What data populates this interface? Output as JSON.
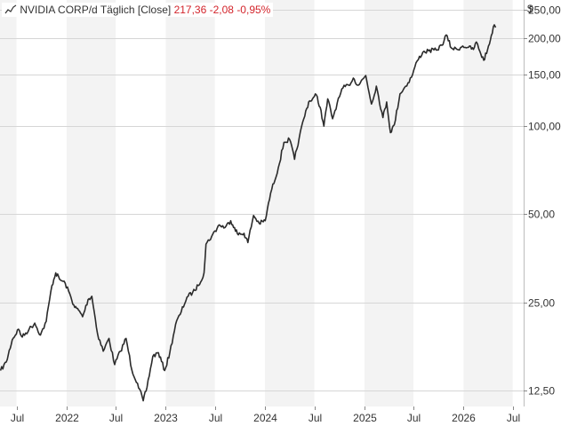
{
  "legend": {
    "instrument": "NVIDIA CORP/d",
    "interval": "Täglich",
    "mode": "[Close]",
    "last": "217,36",
    "change": "-2,08",
    "change_pct": "-0,95%"
  },
  "colors": {
    "line": "#2b2b2b",
    "change_negative": "#d3242b",
    "band_light": "#f3f3f3",
    "band_white": "#ffffff",
    "grid": "#d6d6d6",
    "axis_panel": "#ffffff"
  },
  "chart_data": {
    "type": "line",
    "title": "",
    "xlabel": "",
    "ylabel": "",
    "y_scale": "log",
    "y_unit": "$",
    "ylim": [
      11,
      270
    ],
    "xlim": [
      "2021-05-01",
      "2026-08-10"
    ],
    "x_ticks": [
      {
        "date": "2021-07-01",
        "label": "Jul"
      },
      {
        "date": "2022-01-01",
        "label": "2022"
      },
      {
        "date": "2022-07-01",
        "label": "Jul"
      },
      {
        "date": "2023-01-01",
        "label": "2023"
      },
      {
        "date": "2023-07-01",
        "label": "Jul"
      },
      {
        "date": "2024-01-01",
        "label": "2024"
      },
      {
        "date": "2024-07-01",
        "label": "Jul"
      },
      {
        "date": "2025-01-01",
        "label": "2025"
      },
      {
        "date": "2025-07-01",
        "label": "Jul"
      },
      {
        "date": "2026-01-01",
        "label": "2026"
      },
      {
        "date": "2026-07-01",
        "label": "Jul"
      }
    ],
    "y_ticks": [
      {
        "value": 12.5,
        "label": "12,50"
      },
      {
        "value": 25,
        "label": "25,00"
      },
      {
        "value": 50,
        "label": "50,00"
      },
      {
        "value": 100,
        "label": "100,00"
      },
      {
        "value": 150,
        "label": "150,00"
      },
      {
        "value": 200,
        "label": "200,00"
      },
      {
        "value": 250,
        "label": "250,00"
      }
    ],
    "grid": true,
    "series": [
      {
        "name": "NVIDIA CORP/d",
        "points": [
          [
            "2021-05-03",
            14.6
          ],
          [
            "2021-05-24",
            15.6
          ],
          [
            "2021-06-15",
            18.6
          ],
          [
            "2021-07-08",
            20.2
          ],
          [
            "2021-07-22",
            19.0
          ],
          [
            "2021-08-16",
            20.2
          ],
          [
            "2021-09-06",
            21.2
          ],
          [
            "2021-09-27",
            19.3
          ],
          [
            "2021-10-18",
            21.5
          ],
          [
            "2021-11-08",
            28.5
          ],
          [
            "2021-11-22",
            31.5
          ],
          [
            "2021-12-06",
            30.0
          ],
          [
            "2021-12-27",
            29.0
          ],
          [
            "2022-01-17",
            26.0
          ],
          [
            "2022-01-31",
            24.0
          ],
          [
            "2022-02-14",
            23.5
          ],
          [
            "2022-03-01",
            22.3
          ],
          [
            "2022-03-21",
            25.5
          ],
          [
            "2022-04-04",
            26.2
          ],
          [
            "2022-04-25",
            19.5
          ],
          [
            "2022-05-16",
            17.0
          ],
          [
            "2022-06-06",
            18.8
          ],
          [
            "2022-06-27",
            15.3
          ],
          [
            "2022-07-18",
            17.0
          ],
          [
            "2022-08-08",
            18.8
          ],
          [
            "2022-08-29",
            14.7
          ],
          [
            "2022-09-19",
            13.2
          ],
          [
            "2022-10-10",
            11.5
          ],
          [
            "2022-10-24",
            12.8
          ],
          [
            "2022-11-14",
            16.3
          ],
          [
            "2022-12-05",
            16.8
          ],
          [
            "2022-12-28",
            14.6
          ],
          [
            "2023-01-16",
            16.8
          ],
          [
            "2023-02-06",
            21.0
          ],
          [
            "2023-02-27",
            23.2
          ],
          [
            "2023-03-20",
            26.0
          ],
          [
            "2023-04-10",
            27.0
          ],
          [
            "2023-05-01",
            28.5
          ],
          [
            "2023-05-22",
            31.5
          ],
          [
            "2023-05-29",
            39.5
          ],
          [
            "2023-06-19",
            42.0
          ],
          [
            "2023-07-17",
            46.0
          ],
          [
            "2023-08-07",
            45.0
          ],
          [
            "2023-08-28",
            47.5
          ],
          [
            "2023-09-11",
            45.0
          ],
          [
            "2023-09-25",
            42.5
          ],
          [
            "2023-10-16",
            43.0
          ],
          [
            "2023-10-30",
            40.0
          ],
          [
            "2023-11-20",
            49.5
          ],
          [
            "2023-12-11",
            46.5
          ],
          [
            "2024-01-02",
            47.5
          ],
          [
            "2024-01-22",
            59.0
          ],
          [
            "2024-02-19",
            72.0
          ],
          [
            "2024-03-11",
            88.0
          ],
          [
            "2024-04-01",
            90.0
          ],
          [
            "2024-04-19",
            77.0
          ],
          [
            "2024-05-06",
            91.0
          ],
          [
            "2024-05-23",
            106.0
          ],
          [
            "2024-06-10",
            121.0
          ],
          [
            "2024-06-24",
            124.0
          ],
          [
            "2024-07-08",
            128.0
          ],
          [
            "2024-07-22",
            116.0
          ],
          [
            "2024-08-05",
            100.0
          ],
          [
            "2024-08-19",
            124.0
          ],
          [
            "2024-09-06",
            106.0
          ],
          [
            "2024-09-23",
            120.0
          ],
          [
            "2024-10-14",
            135.0
          ],
          [
            "2024-11-04",
            138.0
          ],
          [
            "2024-11-21",
            146.0
          ],
          [
            "2024-12-09",
            138.0
          ],
          [
            "2025-01-06",
            149.0
          ],
          [
            "2025-01-27",
            119.0
          ],
          [
            "2025-02-14",
            137.0
          ],
          [
            "2025-03-10",
            107.0
          ],
          [
            "2025-03-24",
            121.0
          ],
          [
            "2025-04-07",
            95.0
          ],
          [
            "2025-04-21",
            101.0
          ],
          [
            "2025-05-12",
            129.0
          ],
          [
            "2025-06-02",
            137.0
          ],
          [
            "2025-06-23",
            147.0
          ],
          [
            "2025-07-14",
            167.0
          ],
          [
            "2025-08-04",
            179.0
          ],
          [
            "2025-08-25",
            181.0
          ],
          [
            "2025-09-22",
            182.0
          ],
          [
            "2025-10-13",
            189.0
          ],
          [
            "2025-10-29",
            205.0
          ],
          [
            "2025-11-17",
            185.0
          ],
          [
            "2025-12-08",
            183.0
          ],
          [
            "2025-12-29",
            188.0
          ],
          [
            "2026-01-19",
            186.0
          ],
          [
            "2026-02-06",
            183.0
          ],
          [
            "2026-02-17",
            194.0
          ],
          [
            "2026-03-02",
            180.0
          ],
          [
            "2026-03-16",
            168.0
          ],
          [
            "2026-03-30",
            182.0
          ],
          [
            "2026-04-13",
            204.0
          ],
          [
            "2026-04-24",
            222.0
          ],
          [
            "2026-04-29",
            217.36
          ]
        ]
      }
    ]
  }
}
